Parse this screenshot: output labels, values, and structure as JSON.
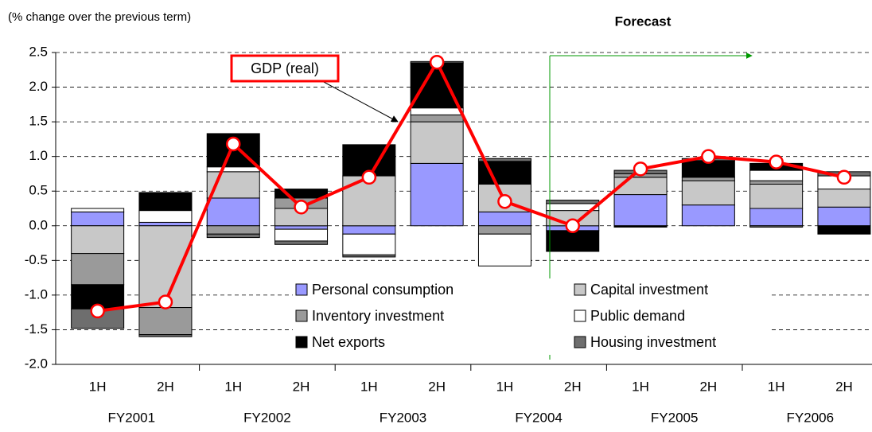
{
  "chart_data": {
    "type": "bar",
    "stacked": true,
    "annotations": [
      "(% change over the previous term)",
      "Forecast",
      "GDP (real)"
    ],
    "categories": [
      "1H",
      "2H",
      "1H",
      "2H",
      "1H",
      "2H",
      "1H",
      "2H",
      "1H",
      "2H",
      "1H",
      "2H"
    ],
    "groups": [
      "FY2001",
      "FY2002",
      "FY2003",
      "FY2004",
      "FY2005",
      "FY2006"
    ],
    "series": [
      {
        "name": "Personal consumption",
        "color": "#9999ff",
        "values": [
          0.2,
          0.05,
          0.4,
          -0.05,
          -0.12,
          0.9,
          0.2,
          -0.07,
          0.45,
          0.3,
          0.25,
          0.27
        ]
      },
      {
        "name": "Capital investment",
        "color": "#c8c8c8",
        "values": [
          -0.4,
          -1.18,
          0.38,
          0.25,
          0.72,
          0.6,
          0.4,
          0.22,
          0.25,
          0.35,
          0.35,
          0.26
        ]
      },
      {
        "name": "Inventory investment",
        "color": "#9a9a9a",
        "values": [
          -0.45,
          -0.39,
          -0.12,
          0.15,
          0,
          0.1,
          -0.12,
          0,
          0.05,
          0.05,
          0.05,
          0
        ]
      },
      {
        "name": "Public demand",
        "color": "#ffffff",
        "values": [
          0.05,
          0.17,
          0.07,
          -0.17,
          -0.3,
          0.1,
          -0.46,
          0.1,
          0,
          0,
          0.15,
          0.19
        ]
      },
      {
        "name": "Net exports",
        "color": "#000000",
        "values": [
          -0.35,
          0.26,
          0.48,
          0.13,
          0.45,
          0.65,
          0.33,
          -0.3,
          -0.02,
          0.24,
          0.1,
          -0.12
        ]
      },
      {
        "name": "Housing investment",
        "color": "#6e6e6e",
        "values": [
          -0.28,
          -0.03,
          -0.05,
          -0.05,
          -0.03,
          0.02,
          0.04,
          0.05,
          0.05,
          0.03,
          -0.02,
          0.06
        ]
      }
    ],
    "line": {
      "color": "#ff0000",
      "values": [
        -1.23,
        -1.1,
        1.18,
        0.27,
        0.7,
        2.36,
        0.35,
        0.0,
        0.82,
        1.0,
        0.92,
        0.7
      ]
    },
    "ylim": [
      -2.0,
      2.5
    ],
    "yticks": [
      {
        "value": -2.0,
        "label": "-2.0"
      },
      {
        "value": -1.5,
        "label": "-1.5"
      },
      {
        "value": -1.0,
        "label": "-1.0"
      },
      {
        "value": -0.5,
        "label": "-0.5"
      },
      {
        "value": 0,
        "label": "0.0"
      },
      {
        "value": 0.5,
        "label": "0.5"
      },
      {
        "value": 1.0,
        "label": "1.0"
      },
      {
        "value": 1.5,
        "label": "1.5"
      },
      {
        "value": 2.0,
        "label": "2.0"
      },
      {
        "value": 2.5,
        "label": "2.5"
      }
    ],
    "grid": true
  }
}
